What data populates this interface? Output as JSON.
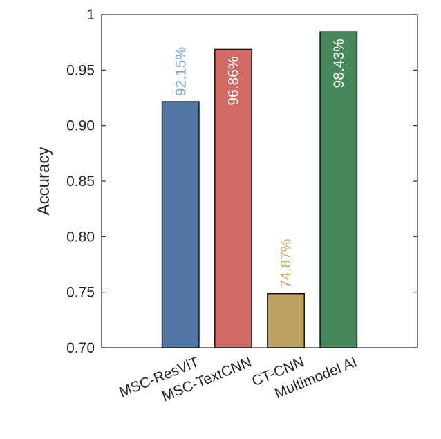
{
  "chart_data": {
    "type": "bar",
    "categories": [
      "MSC-ResViT",
      "MSC-TextCNN",
      "CT-CNN",
      "Multimodel AI"
    ],
    "values": [
      0.9215,
      0.9686,
      0.7487,
      0.9843
    ],
    "data_labels": [
      "92.15%",
      "96.86%",
      "74.87%",
      "98.43%"
    ],
    "data_label_colors": [
      "#7ea6e0",
      "#ffffff",
      "#c9a96a",
      "#ffffff"
    ],
    "bar_colors": [
      "#5377a5",
      "#d16b63",
      "#bda064",
      "#46885a"
    ],
    "ylabel": "Accuracy",
    "xlabel": "",
    "title": "",
    "ylim": [
      0.7,
      1.0
    ],
    "yticks": [
      0.7,
      0.75,
      0.8,
      0.85,
      0.9,
      0.95,
      1.0
    ],
    "ytick_labels": [
      "0.70",
      "0.75",
      "0.80",
      "0.85",
      "0.90",
      "0.95",
      "1"
    ],
    "grid": false
  }
}
